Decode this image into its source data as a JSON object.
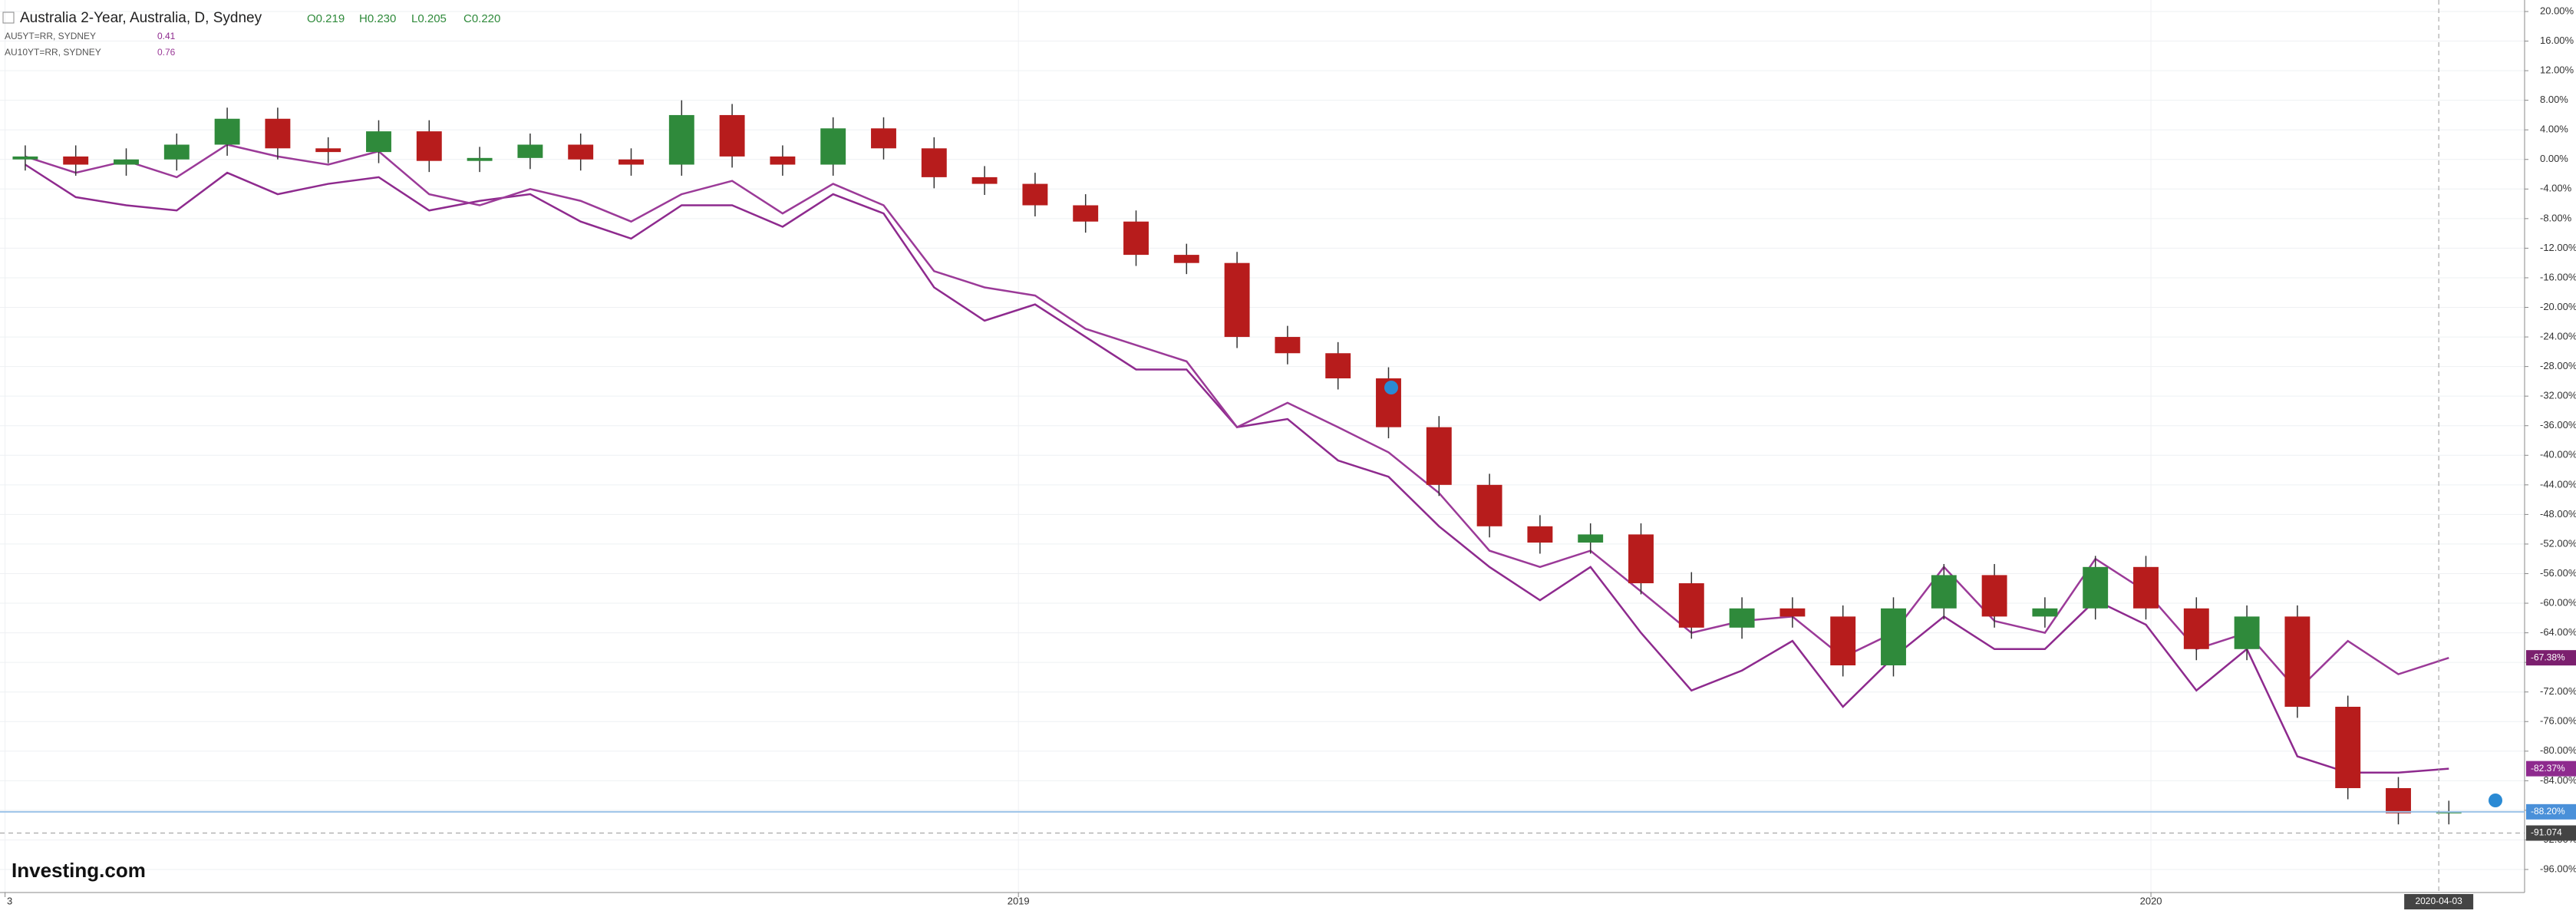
{
  "chart_data": {
    "type": "candlestick",
    "title": "Australia 2-Year, Australia, D, Sydney",
    "ohlc_labels": [
      "O0.219",
      "H0.230",
      "L0.205",
      "C0.220"
    ],
    "logo": "Investing.com",
    "up_color": "#2f8a3b",
    "down_color": "#b71c1c",
    "open": [
      0,
      0.4,
      -0.7,
      0,
      2,
      5.5,
      1.5,
      1,
      3.8,
      -0.2,
      0.2,
      2,
      0,
      -0.7,
      6,
      0.4,
      -0.7,
      4.2,
      1.5,
      -2.4,
      -3.3,
      -6.2,
      -8.4,
      -12.9,
      -14,
      -24,
      -26.2,
      -29.6,
      -36.2,
      -44,
      -49.6,
      -51.8,
      -50.7,
      -57.3,
      -63.3,
      -60.7,
      -61.8,
      -68.4,
      -60.7,
      -56.2,
      -61.8,
      -60.7,
      -55.1,
      -60.7,
      -66.2,
      -61.8,
      -74,
      -85,
      -88.4
    ],
    "high": [
      1.9,
      1.9,
      1.5,
      3.5,
      7,
      7,
      3,
      5.3,
      5.3,
      1.7,
      3.5,
      3.5,
      1.5,
      8,
      7.5,
      1.9,
      5.7,
      5.7,
      3,
      -0.9,
      -1.8,
      -4.7,
      -6.9,
      -11.4,
      -12.5,
      -22.5,
      -24.7,
      -28.1,
      -34.7,
      -42.5,
      -48.1,
      -49.2,
      -49.2,
      -55.8,
      -59.2,
      -59.2,
      -60.3,
      -59.2,
      -54.7,
      -54.7,
      -59.2,
      -53.6,
      -53.6,
      -59.2,
      -60.3,
      -60.3,
      -72.5,
      -83.5,
      -86.7
    ],
    "low": [
      -1.5,
      -2.2,
      -2.2,
      -1.5,
      0.5,
      0,
      -0.5,
      -0.5,
      -1.7,
      -1.7,
      -1.3,
      -1.5,
      -2.2,
      -2.2,
      -1.1,
      -2.2,
      -2.2,
      0,
      -3.9,
      -4.8,
      -7.7,
      -9.9,
      -14.4,
      -15.5,
      -25.5,
      -27.7,
      -31.1,
      -37.7,
      -45.5,
      -51.1,
      -53.3,
      -53.3,
      -58.8,
      -64.8,
      -64.8,
      -63.3,
      -69.9,
      -69.9,
      -62.2,
      -63.3,
      -63.3,
      -62.2,
      -62.2,
      -67.7,
      -67.7,
      -75.5,
      -86.5,
      -89.9,
      -89.9
    ],
    "close": [
      0.4,
      -0.7,
      0,
      2,
      5.5,
      1.5,
      1,
      3.8,
      -0.2,
      0.2,
      2,
      0,
      -0.7,
      6,
      0.4,
      -0.7,
      4.2,
      1.5,
      -2.4,
      -3.3,
      -6.2,
      -8.4,
      -12.9,
      -14,
      -24,
      -26.2,
      -29.6,
      -36.2,
      -44,
      -49.6,
      -51.8,
      -50.7,
      -57.3,
      -63.3,
      -60.7,
      -61.8,
      -68.4,
      -60.7,
      -56.2,
      -61.8,
      -60.7,
      -55.1,
      -60.7,
      -66.2,
      -61.8,
      -74,
      -85,
      -88.4,
      -88.2
    ],
    "series": [
      {
        "name": "AU5YT=RR, SYDNEY",
        "last": "0.41",
        "color": "#8e2a8e",
        "values": [
          -0.7,
          -5.1,
          -6.2,
          -6.9,
          -1.8,
          -4.7,
          -3.3,
          -2.4,
          -6.9,
          -5.6,
          -4.7,
          -8.4,
          -10.7,
          -6.2,
          -6.2,
          -9.1,
          -4.7,
          -7.3,
          -17.3,
          -21.8,
          -19.6,
          -24,
          -28.4,
          -28.4,
          -36.2,
          -35.1,
          -40.7,
          -42.9,
          -49.6,
          -55.1,
          -59.6,
          -55.1,
          -64,
          -71.8,
          -69.1,
          -65.1,
          -74,
          -67.3,
          -61.8,
          -66.2,
          -66.2,
          -59.6,
          -62.9,
          -71.8,
          -66.2,
          -80.7,
          -82.9,
          -82.9,
          -82.37
        ]
      },
      {
        "name": "AU10YT=RR, SYDNEY",
        "last": "0.76",
        "color": "#9b3a98",
        "values": [
          0.4,
          -1.8,
          -0.2,
          -2.4,
          2,
          0.4,
          -0.7,
          1.1,
          -4.7,
          -6.2,
          -4,
          -5.6,
          -8.4,
          -4.7,
          -2.9,
          -7.3,
          -3.3,
          -6.2,
          -15.1,
          -17.3,
          -18.4,
          -22.9,
          -25.1,
          -27.3,
          -36.2,
          -32.9,
          -36.2,
          -39.6,
          -45.1,
          -52.9,
          -55.1,
          -52.9,
          -58.4,
          -64,
          -62.4,
          -61.8,
          -67.3,
          -64,
          -55.1,
          -62.4,
          -64,
          -54,
          -58.4,
          -66.2,
          -64,
          -71.8,
          -65.1,
          -69.6,
          -67.38
        ]
      }
    ],
    "markers": [
      {
        "value": -67.38,
        "label": "-67.38%",
        "color": "#7b1f6e"
      },
      {
        "value": -82.37,
        "label": "-82.37%",
        "color": "#8e2a8e"
      },
      {
        "value": -88.2,
        "label": "-88.20%",
        "color": "#4a90d9"
      }
    ],
    "crosshair": {
      "x": {
        "value": 47.8,
        "label": "2020-04-03"
      },
      "y": {
        "value": -91.074,
        "label": "-91.074"
      }
    },
    "xlim": [
      -0.5,
      49.5
    ],
    "xticks": [
      {
        "value": -0.4,
        "label": "3"
      },
      {
        "value": 19.67,
        "label": "2019"
      },
      {
        "value": 42.1,
        "label": "2020"
      }
    ],
    "ylim": [
      -96,
      20
    ],
    "yticks": [
      {
        "value": 20,
        "label": "20.00%"
      },
      {
        "value": 16,
        "label": "16.00%"
      },
      {
        "value": 12,
        "label": "12.00%"
      },
      {
        "value": 8,
        "label": "8.00%"
      },
      {
        "value": 4,
        "label": "4.00%"
      },
      {
        "value": 0,
        "label": "0.00%"
      },
      {
        "value": -4,
        "label": "-4.00%"
      },
      {
        "value": -8,
        "label": "-8.00%"
      },
      {
        "value": -12,
        "label": "-12.00%"
      },
      {
        "value": -16,
        "label": "-16.00%"
      },
      {
        "value": -20,
        "label": "-20.00%"
      },
      {
        "value": -24,
        "label": "-24.00%"
      },
      {
        "value": -28,
        "label": "-28.00%"
      },
      {
        "value": -32,
        "label": "-32.00%"
      },
      {
        "value": -36,
        "label": "-36.00%"
      },
      {
        "value": -40,
        "label": "-40.00%"
      },
      {
        "value": -44,
        "label": "-44.00%"
      },
      {
        "value": -48,
        "label": "-48.00%"
      },
      {
        "value": -52,
        "label": "-52.00%"
      },
      {
        "value": -56,
        "label": "-56.00%"
      },
      {
        "value": -60,
        "label": "-60.00%"
      },
      {
        "value": -64,
        "label": "-64.00%"
      },
      {
        "value": -68,
        "label": "-68.00%"
      },
      {
        "value": -72,
        "label": "-72.00%"
      },
      {
        "value": -76,
        "label": "-76.00%"
      },
      {
        "value": -80,
        "label": "-80.00%"
      },
      {
        "value": -84,
        "label": "-84.00%"
      },
      {
        "value": -88,
        "label": "-88.00%"
      },
      {
        "value": -92,
        "label": "-92.00%"
      },
      {
        "value": -96,
        "label": "-96.00%"
      }
    ],
    "grid": true
  }
}
